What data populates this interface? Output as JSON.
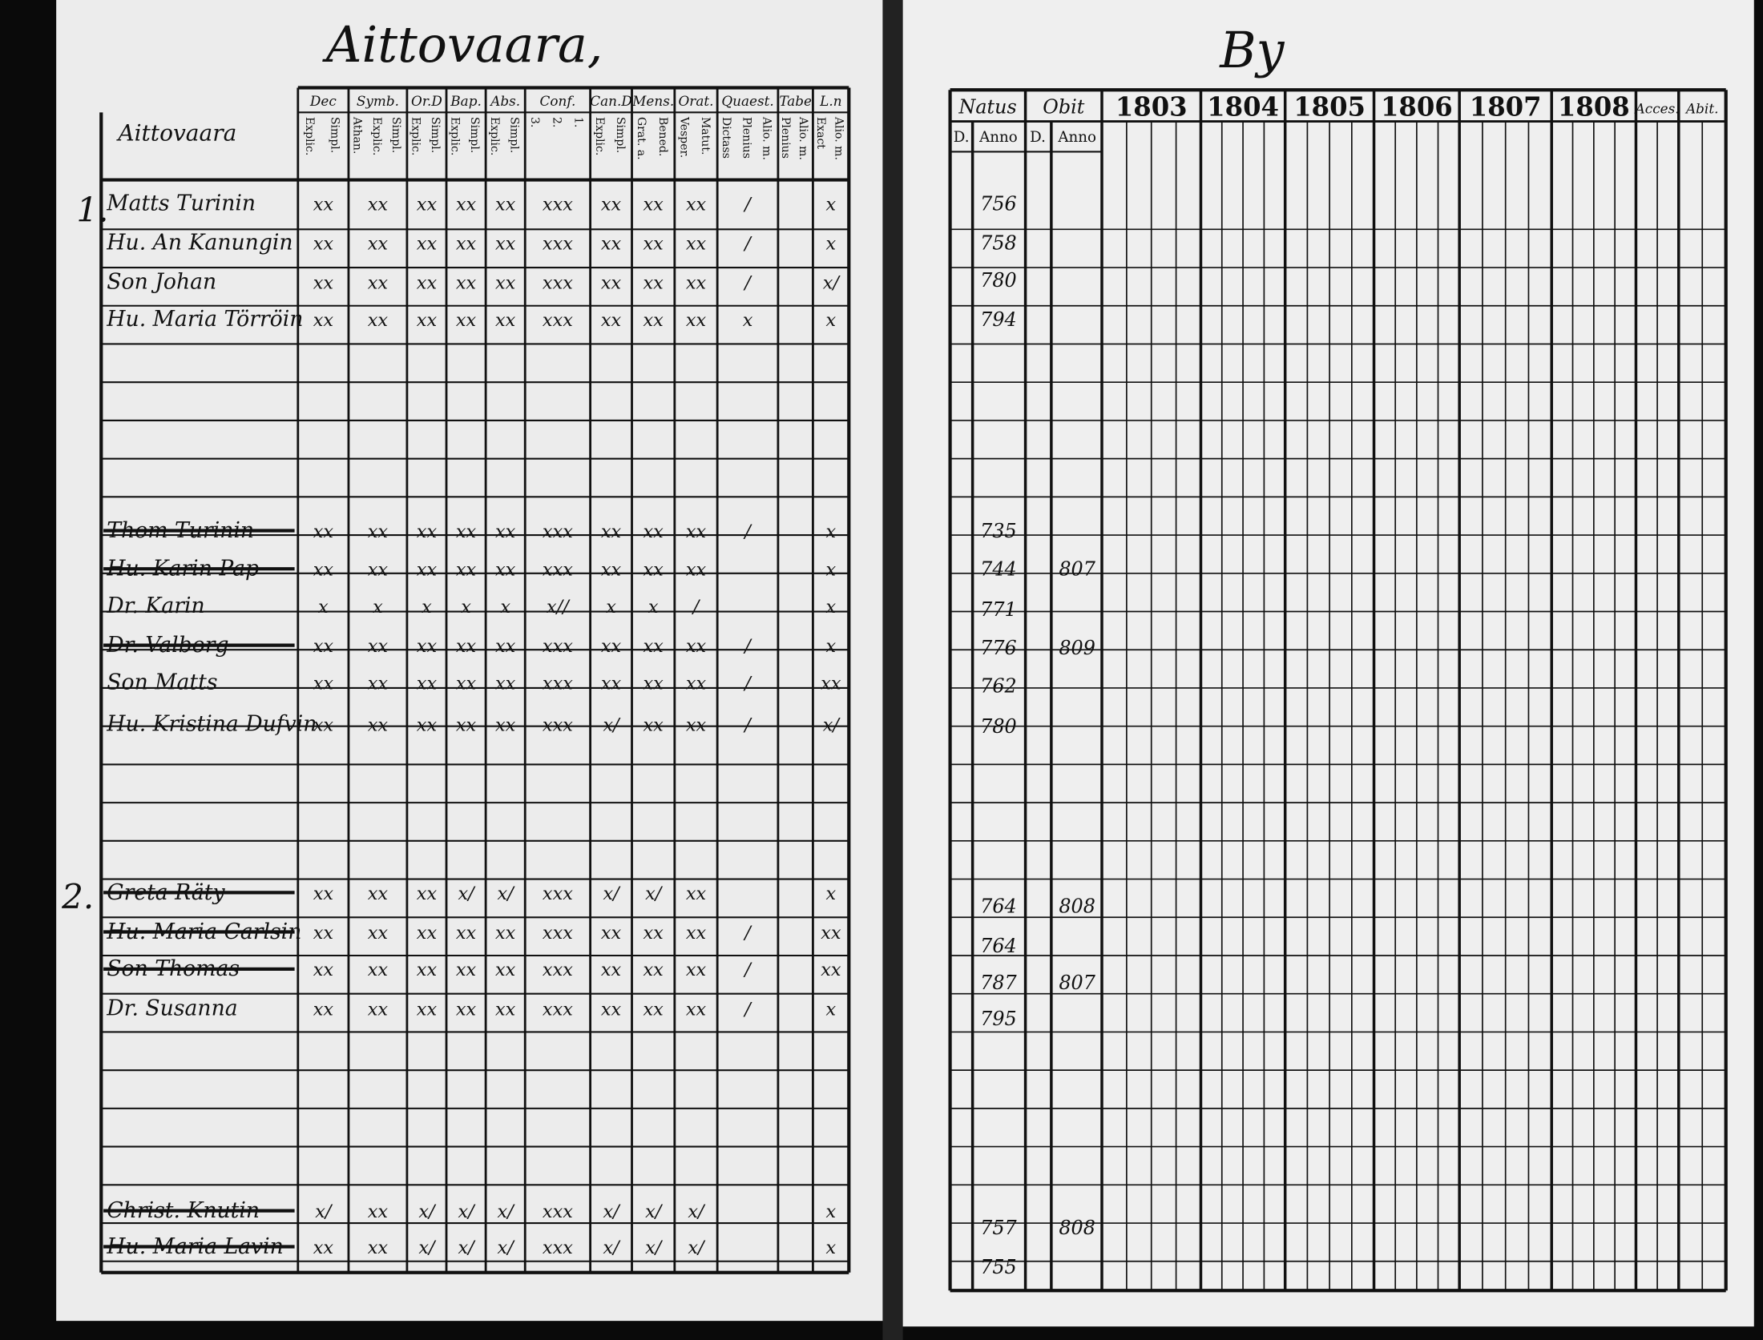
{
  "left_page": {
    "title": "Aittovaara,",
    "name_header": "Aittovaara",
    "columns": [
      {
        "top": "Dec",
        "sub": [
          "Explic.",
          "Simpl."
        ]
      },
      {
        "top": "Symb.",
        "sub": [
          "Athan.",
          "Explic.",
          "Simpl."
        ]
      },
      {
        "top": "Or.D",
        "sub": [
          "Explic.",
          "Simpl."
        ]
      },
      {
        "top": "Bap.",
        "sub": [
          "Explic.",
          "Simpl."
        ]
      },
      {
        "top": "Abs.",
        "sub": [
          "Explic.",
          "Simpl."
        ]
      },
      {
        "top": "Conf.",
        "sub": [
          "3.",
          "2.",
          "1."
        ]
      },
      {
        "top": "Can.D",
        "sub": [
          "Explic.",
          "Simpl."
        ]
      },
      {
        "top": "Mens.",
        "sub": [
          "Grat. a.",
          "Bened."
        ]
      },
      {
        "top": "Orat.",
        "sub": [
          "Vesper.",
          "Matut."
        ]
      },
      {
        "top": "Quaest.",
        "sub": [
          "Dictass",
          "Plenius",
          "Alio. m."
        ]
      },
      {
        "top": "Tabe",
        "sub": [
          "Plenius",
          "Alio. m."
        ]
      },
      {
        "top": "L.n",
        "sub": [
          "Exact",
          "Alio. m."
        ]
      }
    ],
    "household_numbers": [
      "1.",
      "2."
    ],
    "rows": [
      {
        "name": "Matts Turinin",
        "struck": false,
        "marks": [
          "xx",
          "xx",
          "xx",
          "xx",
          "xx",
          "xxx",
          "xx",
          "xx",
          "xx",
          "/",
          null,
          "x"
        ]
      },
      {
        "name": "Hu. An Kanungin",
        "struck": false,
        "marks": [
          "xx",
          "xx",
          "xx",
          "xx",
          "xx",
          "xxx",
          "xx",
          "xx",
          "xx",
          "/",
          null,
          "x"
        ]
      },
      {
        "name": "Son Johan",
        "struck": false,
        "marks": [
          "xx",
          "xx",
          "xx",
          "xx",
          "xx",
          "xxx",
          "xx",
          "xx",
          "xx",
          "/",
          null,
          "x/"
        ]
      },
      {
        "name": "Hu. Maria Törröin",
        "struck": false,
        "marks": [
          "xx",
          "xx",
          "xx",
          "xx",
          "xx",
          "xxx",
          "xx",
          "xx",
          "xx",
          "x",
          null,
          "x"
        ]
      },
      {
        "name": "Thom Turinin",
        "struck": true,
        "marks": [
          "xx",
          "xx",
          "xx",
          "xx",
          "xx",
          "xxx",
          "xx",
          "xx",
          "xx",
          "/",
          null,
          "x"
        ]
      },
      {
        "name": "Hu. Karin Pap",
        "struck": true,
        "marks": [
          "xx",
          "xx",
          "xx",
          "xx",
          "xx",
          "xxx",
          "xx",
          "xx",
          "xx",
          null,
          null,
          "x"
        ]
      },
      {
        "name": "Dr. Karin",
        "struck": false,
        "marks": [
          "x",
          "x",
          "x",
          "x",
          "x",
          "x//",
          "x",
          "x",
          "/",
          null,
          null,
          "x"
        ]
      },
      {
        "name": "Dr. Valborg",
        "struck": true,
        "marks": [
          "xx",
          "xx",
          "xx",
          "xx",
          "xx",
          "xxx",
          "xx",
          "xx",
          "xx",
          "/",
          null,
          "x"
        ]
      },
      {
        "name": "Son Matts",
        "struck": false,
        "marks": [
          "xx",
          "xx",
          "xx",
          "xx",
          "xx",
          "xxx",
          "xx",
          "xx",
          "xx",
          "/",
          null,
          "xx"
        ]
      },
      {
        "name": "Hu. Kristina Dufvin",
        "struck": false,
        "marks": [
          "xx",
          "xx",
          "xx",
          "xx",
          "xx",
          "xxx",
          "x/",
          "xx",
          "xx",
          "/",
          null,
          "x/"
        ]
      },
      {
        "name": "Greta Räty",
        "struck": true,
        "marks": [
          "xx",
          "xx",
          "xx",
          "x/",
          "x/",
          "xxx",
          "x/",
          "x/",
          "xx",
          null,
          null,
          "x"
        ]
      },
      {
        "name": "Hu. Maria Carlsin",
        "struck": true,
        "marks": [
          "xx",
          "xx",
          "xx",
          "xx",
          "xx",
          "xxx",
          "xx",
          "xx",
          "xx",
          "/",
          null,
          "xx"
        ]
      },
      {
        "name": "Son Thomas",
        "struck": true,
        "marks": [
          "xx",
          "xx",
          "xx",
          "xx",
          "xx",
          "xxx",
          "xx",
          "xx",
          "xx",
          "/",
          null,
          "xx"
        ]
      },
      {
        "name": "Dr. Susanna",
        "struck": false,
        "marks": [
          "xx",
          "xx",
          "xx",
          "xx",
          "xx",
          "xxx",
          "xx",
          "xx",
          "xx",
          "/",
          null,
          "x"
        ]
      },
      {
        "name": "Christ. Knutin",
        "struck": true,
        "marks": [
          "x/",
          "xx",
          "x/",
          "x/",
          "x/",
          "xxx",
          "x/",
          "x/",
          "x/",
          null,
          null,
          "x"
        ]
      },
      {
        "name": "Hu. Maria Lavin",
        "struck": true,
        "marks": [
          "xx",
          "xx",
          "x/",
          "x/",
          "x/",
          "xxx",
          "x/",
          "x/",
          "x/",
          null,
          null,
          "x"
        ]
      }
    ]
  },
  "right_page": {
    "title": "By",
    "natus": "Natus",
    "obit": "Obit",
    "day": "D.",
    "anno": "Anno",
    "years": [
      "1803",
      "1804",
      "1805",
      "1806",
      "1807",
      "1808"
    ],
    "accessit": "Acces.",
    "abiit": "Abit.",
    "rows": [
      {
        "natus": "756",
        "obit": null
      },
      {
        "natus": "758",
        "obit": null
      },
      {
        "natus": "780",
        "obit": null
      },
      {
        "natus": "794",
        "obit": null
      },
      {
        "natus": "735",
        "obit": null
      },
      {
        "natus": "744",
        "obit": "807"
      },
      {
        "natus": "771",
        "obit": null
      },
      {
        "natus": "776",
        "obit": "809"
      },
      {
        "natus": "762",
        "obit": null
      },
      {
        "natus": "780",
        "obit": null
      },
      {
        "natus": "764",
        "obit": "808"
      },
      {
        "natus": "764",
        "obit": null
      },
      {
        "natus": "787",
        "obit": "807"
      },
      {
        "natus": "795",
        "obit": null
      },
      {
        "natus": "757",
        "obit": "808"
      },
      {
        "natus": "755",
        "obit": null
      }
    ]
  }
}
